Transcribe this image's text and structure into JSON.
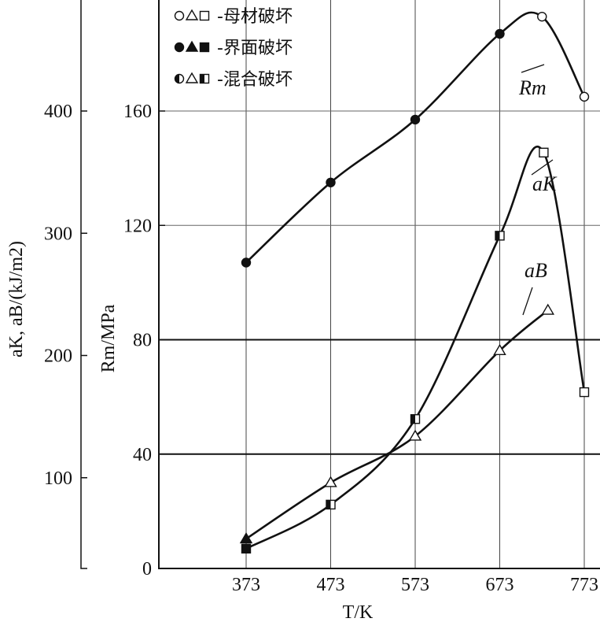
{
  "chart_data": {
    "type": "line",
    "x": [
      373,
      473,
      573,
      673,
      723,
      773
    ],
    "xlabel": "T/K",
    "x_ticks": [
      "373",
      "473",
      "573",
      "673",
      "773"
    ],
    "left_axis": {
      "label": "aK, aB/(kJ/m2)",
      "ticks": [
        "100",
        "200",
        "300",
        "400"
      ],
      "range": [
        0,
        470
      ]
    },
    "right_axis": {
      "label": "Rm/MPa",
      "ticks": [
        "0",
        "40",
        "80",
        "120",
        "160"
      ],
      "range": [
        0,
        188
      ]
    },
    "grid": true,
    "series": [
      {
        "name": "Rm",
        "axis": "Rm",
        "marker": "circle",
        "points": [
          {
            "x": 373,
            "y": 107,
            "fill": "filled"
          },
          {
            "x": 473,
            "y": 135,
            "fill": "filled"
          },
          {
            "x": 573,
            "y": 157,
            "fill": "filled"
          },
          {
            "x": 673,
            "y": 187,
            "fill": "filled"
          },
          {
            "x": 723,
            "y": 193,
            "fill": "open"
          },
          {
            "x": 773,
            "y": 165,
            "fill": "open"
          }
        ]
      },
      {
        "name": "aK",
        "axis": "left",
        "marker": "square",
        "points": [
          {
            "x": 373,
            "y": 42,
            "fill": "filled"
          },
          {
            "x": 473,
            "y": 78,
            "fill": "half"
          },
          {
            "x": 573,
            "y": 148,
            "fill": "half"
          },
          {
            "x": 673,
            "y": 298,
            "fill": "half"
          },
          {
            "x": 725,
            "y": 366,
            "fill": "open"
          },
          {
            "x": 773,
            "y": 170,
            "fill": "open"
          }
        ]
      },
      {
        "name": "aB",
        "axis": "left",
        "marker": "triangle",
        "points": [
          {
            "x": 373,
            "y": 50,
            "fill": "filled"
          },
          {
            "x": 473,
            "y": 96,
            "fill": "open"
          },
          {
            "x": 573,
            "y": 134,
            "fill": "open"
          },
          {
            "x": 673,
            "y": 204,
            "fill": "open"
          },
          {
            "x": 730,
            "y": 237,
            "fill": "open"
          }
        ]
      },
      {
        "name": "aK",
        "axis": "left",
        "marker": "square",
        "points": []
      }
    ],
    "legend": {
      "placement": "top-left",
      "entries": [
        {
          "label": "-母材破坏",
          "fill": "open"
        },
        {
          "label": "-界面破坏",
          "fill": "filled"
        },
        {
          "label": "-混合破坏",
          "fill": "half"
        }
      ]
    }
  }
}
